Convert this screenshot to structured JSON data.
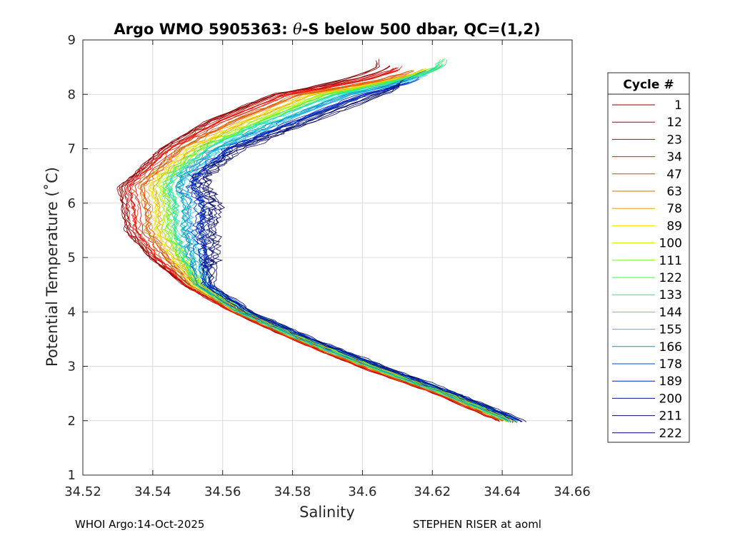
{
  "chart_data": {
    "type": "line",
    "title_prefix": "Argo WMO 5905363: ",
    "title_symbol": "θ",
    "title_suffix": "-S below 500 dbar,  QC=(1,2)",
    "xlabel": "Salinity",
    "ylabel": "Potential Temperature (˚C)",
    "xlim": [
      34.52,
      34.66
    ],
    "ylim": [
      1,
      9
    ],
    "x_ticks": [
      34.52,
      34.54,
      34.56,
      34.58,
      34.6,
      34.62,
      34.64,
      34.66
    ],
    "x_tick_labels": [
      "34.52",
      "34.54",
      "34.56",
      "34.58",
      "34.6",
      "34.62",
      "34.64",
      "34.66"
    ],
    "y_ticks": [
      1,
      2,
      3,
      4,
      5,
      6,
      7,
      8,
      9
    ],
    "y_tick_labels": [
      "1",
      "2",
      "3",
      "4",
      "5",
      "6",
      "7",
      "8",
      "9"
    ],
    "grid": true,
    "legend_title": "Cycle #",
    "legend_placement": "outside-right",
    "legend_entries": [
      {
        "label": "1",
        "color": "#800000"
      },
      {
        "label": "12",
        "color": "#a00000"
      },
      {
        "label": "23",
        "color": "#c80000"
      },
      {
        "label": "34",
        "color": "#e61000"
      },
      {
        "label": "47",
        "color": "#ff3000"
      },
      {
        "label": "63",
        "color": "#d07000"
      },
      {
        "label": "78",
        "color": "#e6a000"
      },
      {
        "label": "89",
        "color": "#f0e000"
      },
      {
        "label": "100",
        "color": "#c8f000"
      },
      {
        "label": "111",
        "color": "#80f020"
      },
      {
        "label": "122",
        "color": "#40f040"
      },
      {
        "label": "133",
        "color": "#20e890"
      },
      {
        "label": "144",
        "color": "#20e0d0"
      },
      {
        "label": "155",
        "color": "#20c8e8"
      },
      {
        "label": "166",
        "color": "#1090c8"
      },
      {
        "label": "178",
        "color": "#0040e0"
      },
      {
        "label": "189",
        "color": "#0020b0"
      },
      {
        "label": "200",
        "color": "#001890"
      },
      {
        "label": "211",
        "color": "#000c70"
      },
      {
        "label": "222",
        "color": "#000060"
      }
    ],
    "series_envelope": {
      "theta": [
        2.0,
        2.5,
        3.0,
        3.5,
        4.0,
        4.5,
        5.0,
        5.5,
        6.0,
        6.3,
        6.5,
        7.0,
        7.5,
        8.0,
        8.5
      ],
      "salinity_red_cycles": [
        34.64,
        34.622,
        34.6,
        34.581,
        34.564,
        34.55,
        34.54,
        34.533,
        34.532,
        34.531,
        34.535,
        34.543,
        34.556,
        34.575,
        34.605
      ],
      "salinity_blue_cycles": [
        34.645,
        34.626,
        34.605,
        34.585,
        34.567,
        34.556,
        34.557,
        34.557,
        34.558,
        34.555,
        34.555,
        34.565,
        34.585,
        34.605,
        34.625
      ]
    },
    "footer_left": "WHOI Argo:14-Oct-2025",
    "footer_right": "STEPHEN RISER at aoml"
  }
}
